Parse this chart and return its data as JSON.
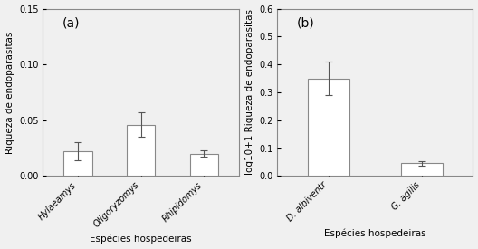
{
  "panel_a": {
    "categories": [
      "Hylaeamys",
      "Oligoryzomys",
      "Rhipidomys"
    ],
    "values": [
      0.022,
      0.046,
      0.02
    ],
    "errors": [
      0.008,
      0.011,
      0.003
    ],
    "ylabel": "Riqueza de endoparasitas",
    "xlabel": "Espécies hospedeiras",
    "ylim": [
      0.0,
      0.15
    ],
    "yticks": [
      0.0,
      0.05,
      0.1,
      0.15
    ],
    "label": "(a)"
  },
  "panel_b": {
    "categories": [
      "D. albiventr",
      "G. agilis"
    ],
    "values": [
      0.35,
      0.046
    ],
    "errors": [
      0.06,
      0.008
    ],
    "ylabel": "log10+1 Riqueza de endoparasitas",
    "xlabel": "Espécies hospedeiras",
    "ylim": [
      0.0,
      0.6
    ],
    "yticks": [
      0.0,
      0.1,
      0.2,
      0.3,
      0.4,
      0.5,
      0.6
    ],
    "label": "(b)"
  },
  "bar_color": "white",
  "bar_edgecolor": "#888888",
  "error_color": "#555555",
  "bg_color": "#f0f0f0",
  "tick_fontsize": 7,
  "label_fontsize": 7.5,
  "panel_label_fontsize": 10
}
